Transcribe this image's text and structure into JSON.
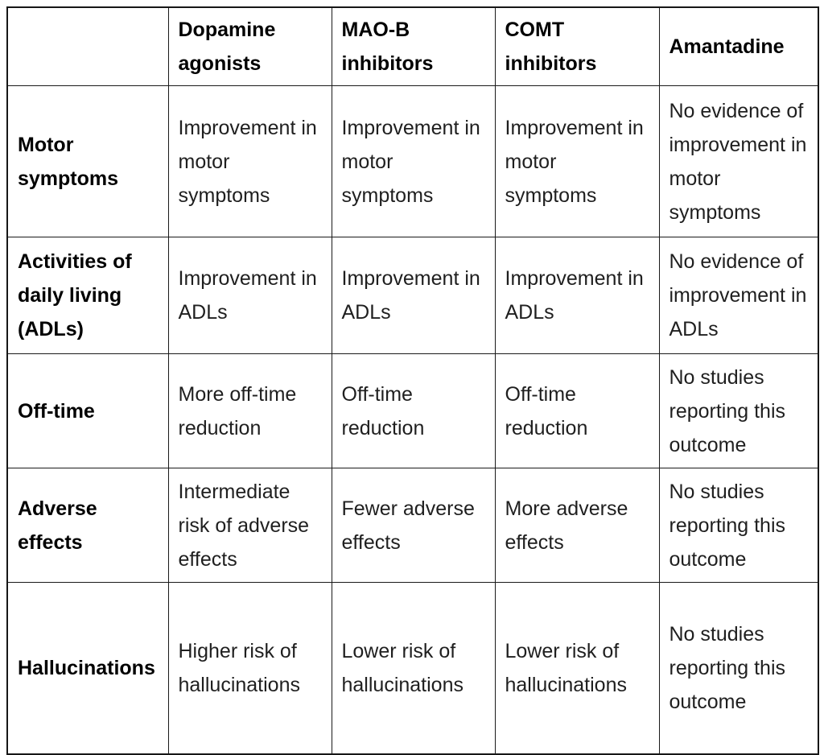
{
  "colors": {
    "background": "#ffffff",
    "border": "#1a1a1a",
    "outer_border": "#161616",
    "body_text": "#1f1f1f",
    "header_text": "#000000"
  },
  "table": {
    "columns": [
      "",
      "Dopamine agonists",
      "MAO-B inhibitors",
      "COMT inhibitors",
      "Amantadine"
    ],
    "rows": [
      {
        "label": "Motor symptoms",
        "cells": [
          "Improvement in motor symptoms",
          "Improvement in motor symptoms",
          "Improvement in motor symptoms",
          "No evidence of improvement in motor symptoms"
        ]
      },
      {
        "label": "Activities of daily living (ADLs)",
        "cells": [
          "Improvement in ADLs",
          "Improvement in ADLs",
          "Improvement in ADLs",
          "No evidence of improvement in ADLs"
        ]
      },
      {
        "label": "Off-time",
        "cells": [
          "More off-time reduction",
          "Off-time reduction",
          "Off-time reduction",
          "No studies reporting this outcome"
        ]
      },
      {
        "label": "Adverse effects",
        "cells": [
          "Intermediate risk of adverse effects",
          "Fewer adverse effects",
          "More adverse effects",
          "No studies reporting this outcome"
        ]
      },
      {
        "label": "Hallucinations",
        "cells": [
          "Higher risk of hallucinations",
          "Lower risk of hallucinations",
          "Lower risk of hallucinations",
          "No studies reporting this outcome"
        ]
      }
    ]
  }
}
